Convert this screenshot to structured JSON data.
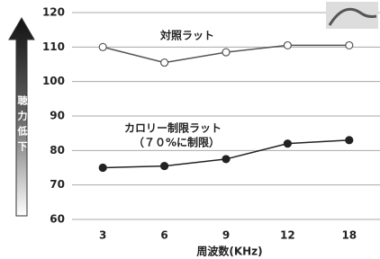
{
  "chart_data": {
    "type": "line",
    "categories": [
      "3",
      "6",
      "9",
      "12",
      "18"
    ],
    "series": [
      {
        "name": "対照ラット",
        "color": "#555555",
        "marker": "open",
        "values": [
          110,
          105.5,
          108.5,
          110.5,
          110.5
        ]
      },
      {
        "name": "カロリー制限ラット",
        "color": "#222222",
        "marker": "filled",
        "values": [
          75,
          75.5,
          77.5,
          82,
          83
        ]
      }
    ],
    "annotations": [
      "（７０%に制限）"
    ],
    "arrow_label": "聴力低下",
    "xlabel": "周波数(KHz)",
    "ylim": [
      60,
      120
    ],
    "yticks": [
      60,
      70,
      80,
      90,
      100,
      110,
      120
    ],
    "grid": true
  }
}
